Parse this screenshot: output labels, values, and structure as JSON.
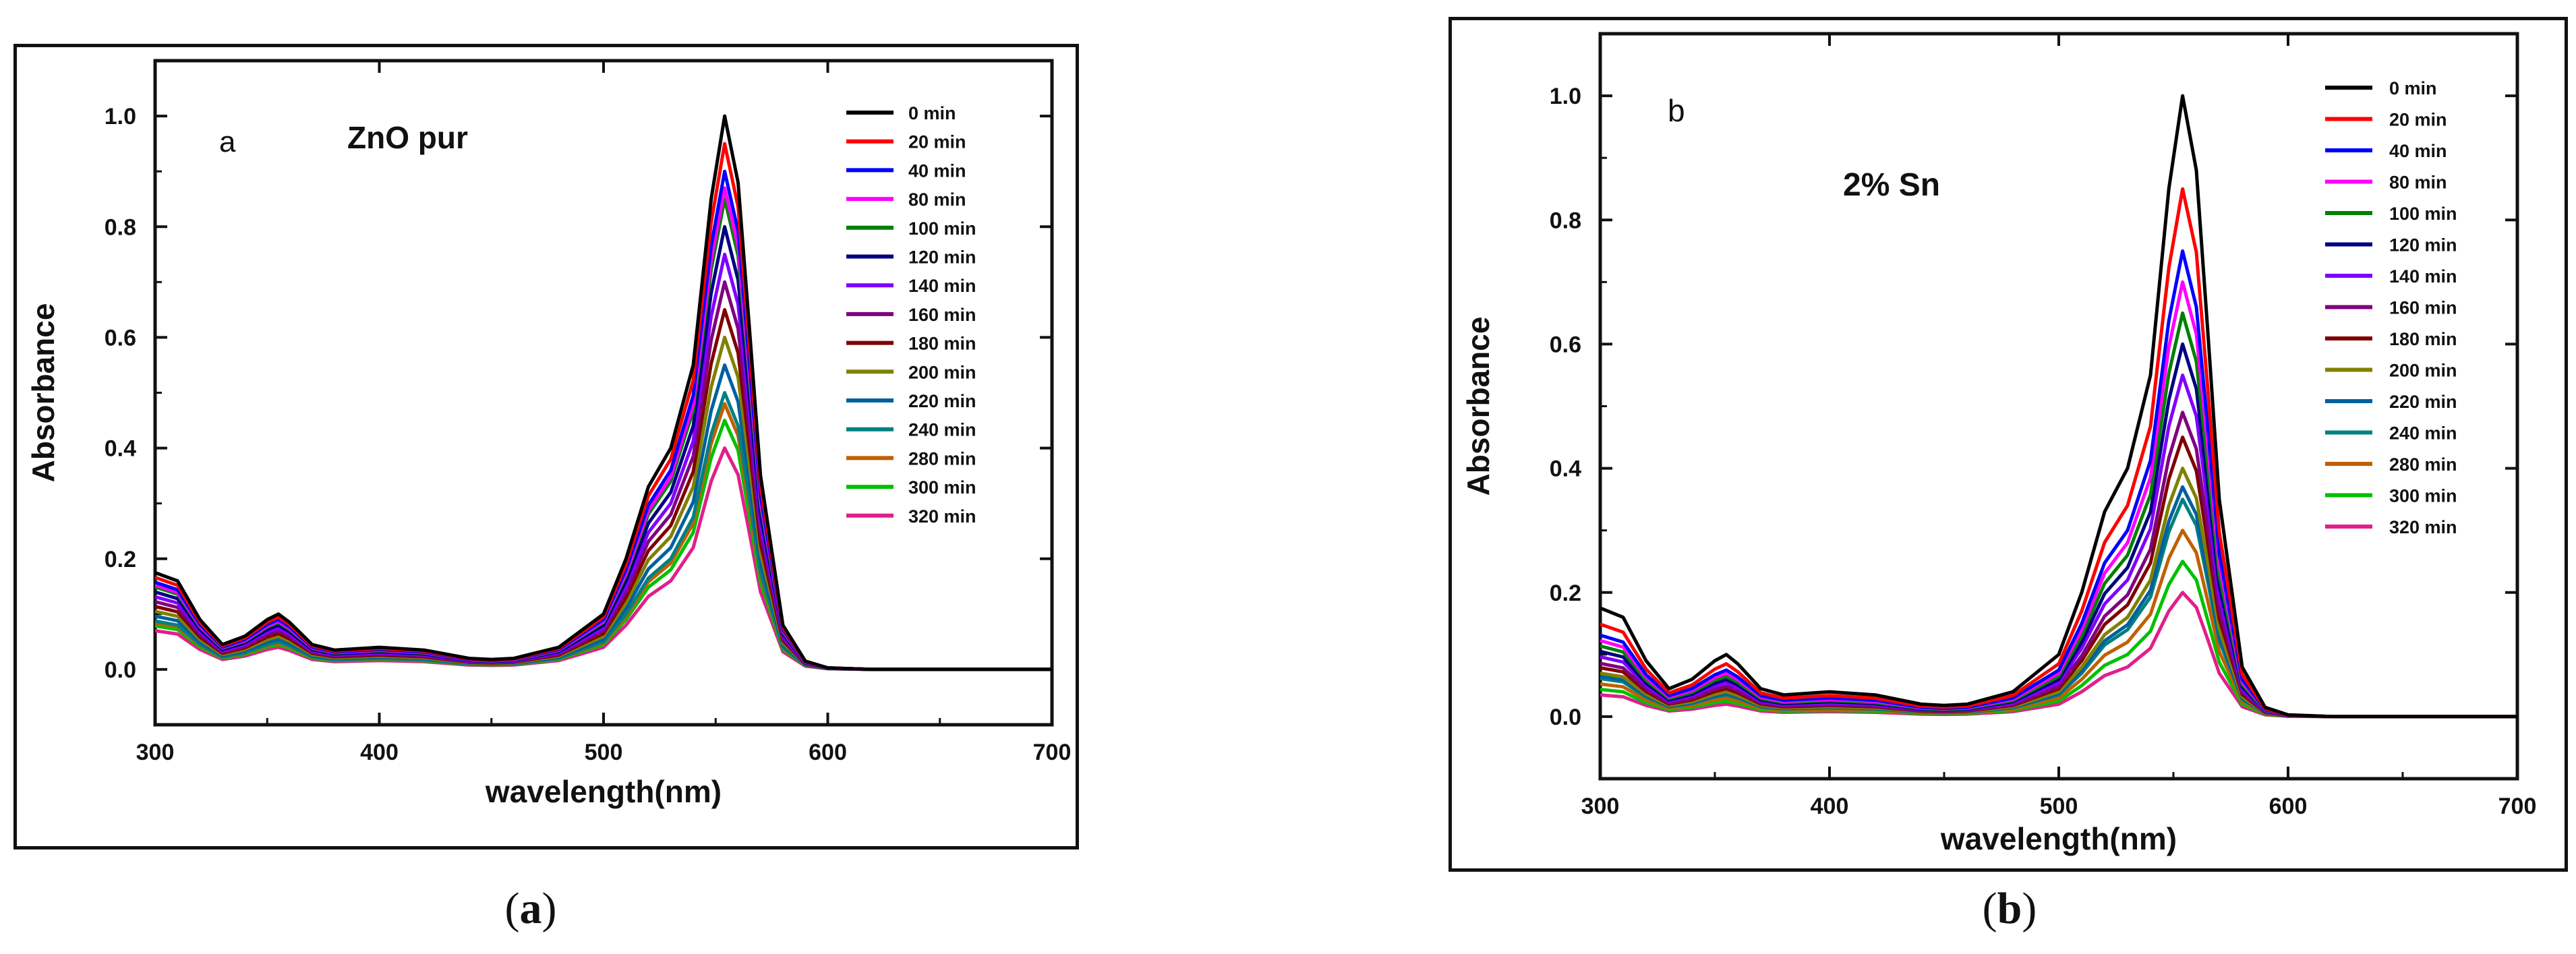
{
  "chart_data": [
    {
      "type": "line",
      "panel": "a",
      "panel_label": "a",
      "annotation": "ZnO pur",
      "caption_pre": "(",
      "caption_letter": "a",
      "caption_post": ")",
      "xlabel": "wavelength(nm)",
      "ylabel": "Absorbance",
      "xlim": [
        300,
        700
      ],
      "ylim": [
        -0.1,
        1.1
      ],
      "xticks": [
        300,
        400,
        500,
        600,
        700
      ],
      "yticks": [
        0.0,
        0.2,
        0.4,
        0.6,
        0.8,
        1.0
      ],
      "ytick_labels": [
        "0.0",
        "0.2",
        "0.4",
        "0.6",
        "0.8",
        "1.0"
      ],
      "legend_position": "top-right",
      "x": [
        300,
        310,
        320,
        330,
        340,
        350,
        355,
        360,
        370,
        380,
        400,
        420,
        440,
        450,
        460,
        480,
        500,
        510,
        520,
        530,
        540,
        548,
        554,
        560,
        565,
        570,
        580,
        590,
        600,
        620,
        650,
        700
      ],
      "series": [
        {
          "name": "0 min",
          "color": "#000000",
          "peak": 1.0
        },
        {
          "name": "20 min",
          "color": "#ff0000",
          "peak": 0.95
        },
        {
          "name": "40 min",
          "color": "#0000ff",
          "peak": 0.9
        },
        {
          "name": "80 min",
          "color": "#ff00ff",
          "peak": 0.87
        },
        {
          "name": "100 min",
          "color": "#008000",
          "peak": 0.85
        },
        {
          "name": "120 min",
          "color": "#000080",
          "peak": 0.8
        },
        {
          "name": "140 min",
          "color": "#8000ff",
          "peak": 0.75
        },
        {
          "name": "160 min",
          "color": "#800080",
          "peak": 0.7
        },
        {
          "name": "180 min",
          "color": "#800000",
          "peak": 0.65
        },
        {
          "name": "200 min",
          "color": "#808000",
          "peak": 0.6
        },
        {
          "name": "220 min",
          "color": "#0060a0",
          "peak": 0.55
        },
        {
          "name": "240 min",
          "color": "#008080",
          "peak": 0.5
        },
        {
          "name": "280 min",
          "color": "#c06000",
          "peak": 0.48
        },
        {
          "name": "300 min",
          "color": "#00c000",
          "peak": 0.45
        },
        {
          "name": "320 min",
          "color": "#e0208a",
          "peak": 0.4
        }
      ]
    },
    {
      "type": "line",
      "panel": "b",
      "panel_label": "b",
      "annotation": "2% Sn",
      "caption_pre": "(",
      "caption_letter": "b",
      "caption_post": ")",
      "xlabel": "wavelength(nm)",
      "ylabel": "Absorbance",
      "xlim": [
        300,
        700
      ],
      "ylim": [
        -0.1,
        1.1
      ],
      "xticks": [
        300,
        400,
        500,
        600,
        700
      ],
      "yticks": [
        0.0,
        0.2,
        0.4,
        0.6,
        0.8,
        1.0
      ],
      "ytick_labels": [
        "0.0",
        "0.2",
        "0.4",
        "0.6",
        "0.8",
        "1.0"
      ],
      "legend_position": "top-right",
      "x": [
        300,
        310,
        320,
        330,
        340,
        350,
        355,
        360,
        370,
        380,
        400,
        420,
        440,
        450,
        460,
        480,
        500,
        510,
        520,
        530,
        540,
        548,
        554,
        560,
        565,
        570,
        580,
        590,
        600,
        620,
        650,
        700
      ],
      "series": [
        {
          "name": "0 min",
          "color": "#000000",
          "peak": 1.0
        },
        {
          "name": "20 min",
          "color": "#ff0000",
          "peak": 0.85
        },
        {
          "name": "40 min",
          "color": "#0000ff",
          "peak": 0.75
        },
        {
          "name": "80 min",
          "color": "#ff00ff",
          "peak": 0.7
        },
        {
          "name": "100 min",
          "color": "#008000",
          "peak": 0.65
        },
        {
          "name": "120 min",
          "color": "#000080",
          "peak": 0.6
        },
        {
          "name": "140 min",
          "color": "#8000ff",
          "peak": 0.55
        },
        {
          "name": "160 min",
          "color": "#800080",
          "peak": 0.49
        },
        {
          "name": "180 min",
          "color": "#800000",
          "peak": 0.45
        },
        {
          "name": "200 min",
          "color": "#808000",
          "peak": 0.4
        },
        {
          "name": "220 min",
          "color": "#0060a0",
          "peak": 0.37
        },
        {
          "name": "240 min",
          "color": "#008080",
          "peak": 0.35
        },
        {
          "name": "280 min",
          "color": "#c06000",
          "peak": 0.3
        },
        {
          "name": "300 min",
          "color": "#00c000",
          "peak": 0.25
        },
        {
          "name": "320 min",
          "color": "#e0208a",
          "peak": 0.2
        }
      ]
    }
  ],
  "spectrum_shape": [
    0.175,
    0.16,
    0.09,
    0.045,
    0.06,
    0.09,
    0.1,
    0.085,
    0.045,
    0.035,
    0.04,
    0.035,
    0.02,
    0.018,
    0.02,
    0.04,
    0.1,
    0.2,
    0.33,
    0.4,
    0.55,
    0.85,
    1.0,
    0.88,
    0.62,
    0.35,
    0.08,
    0.015,
    0.003,
    0.0,
    0.0,
    0.0
  ]
}
